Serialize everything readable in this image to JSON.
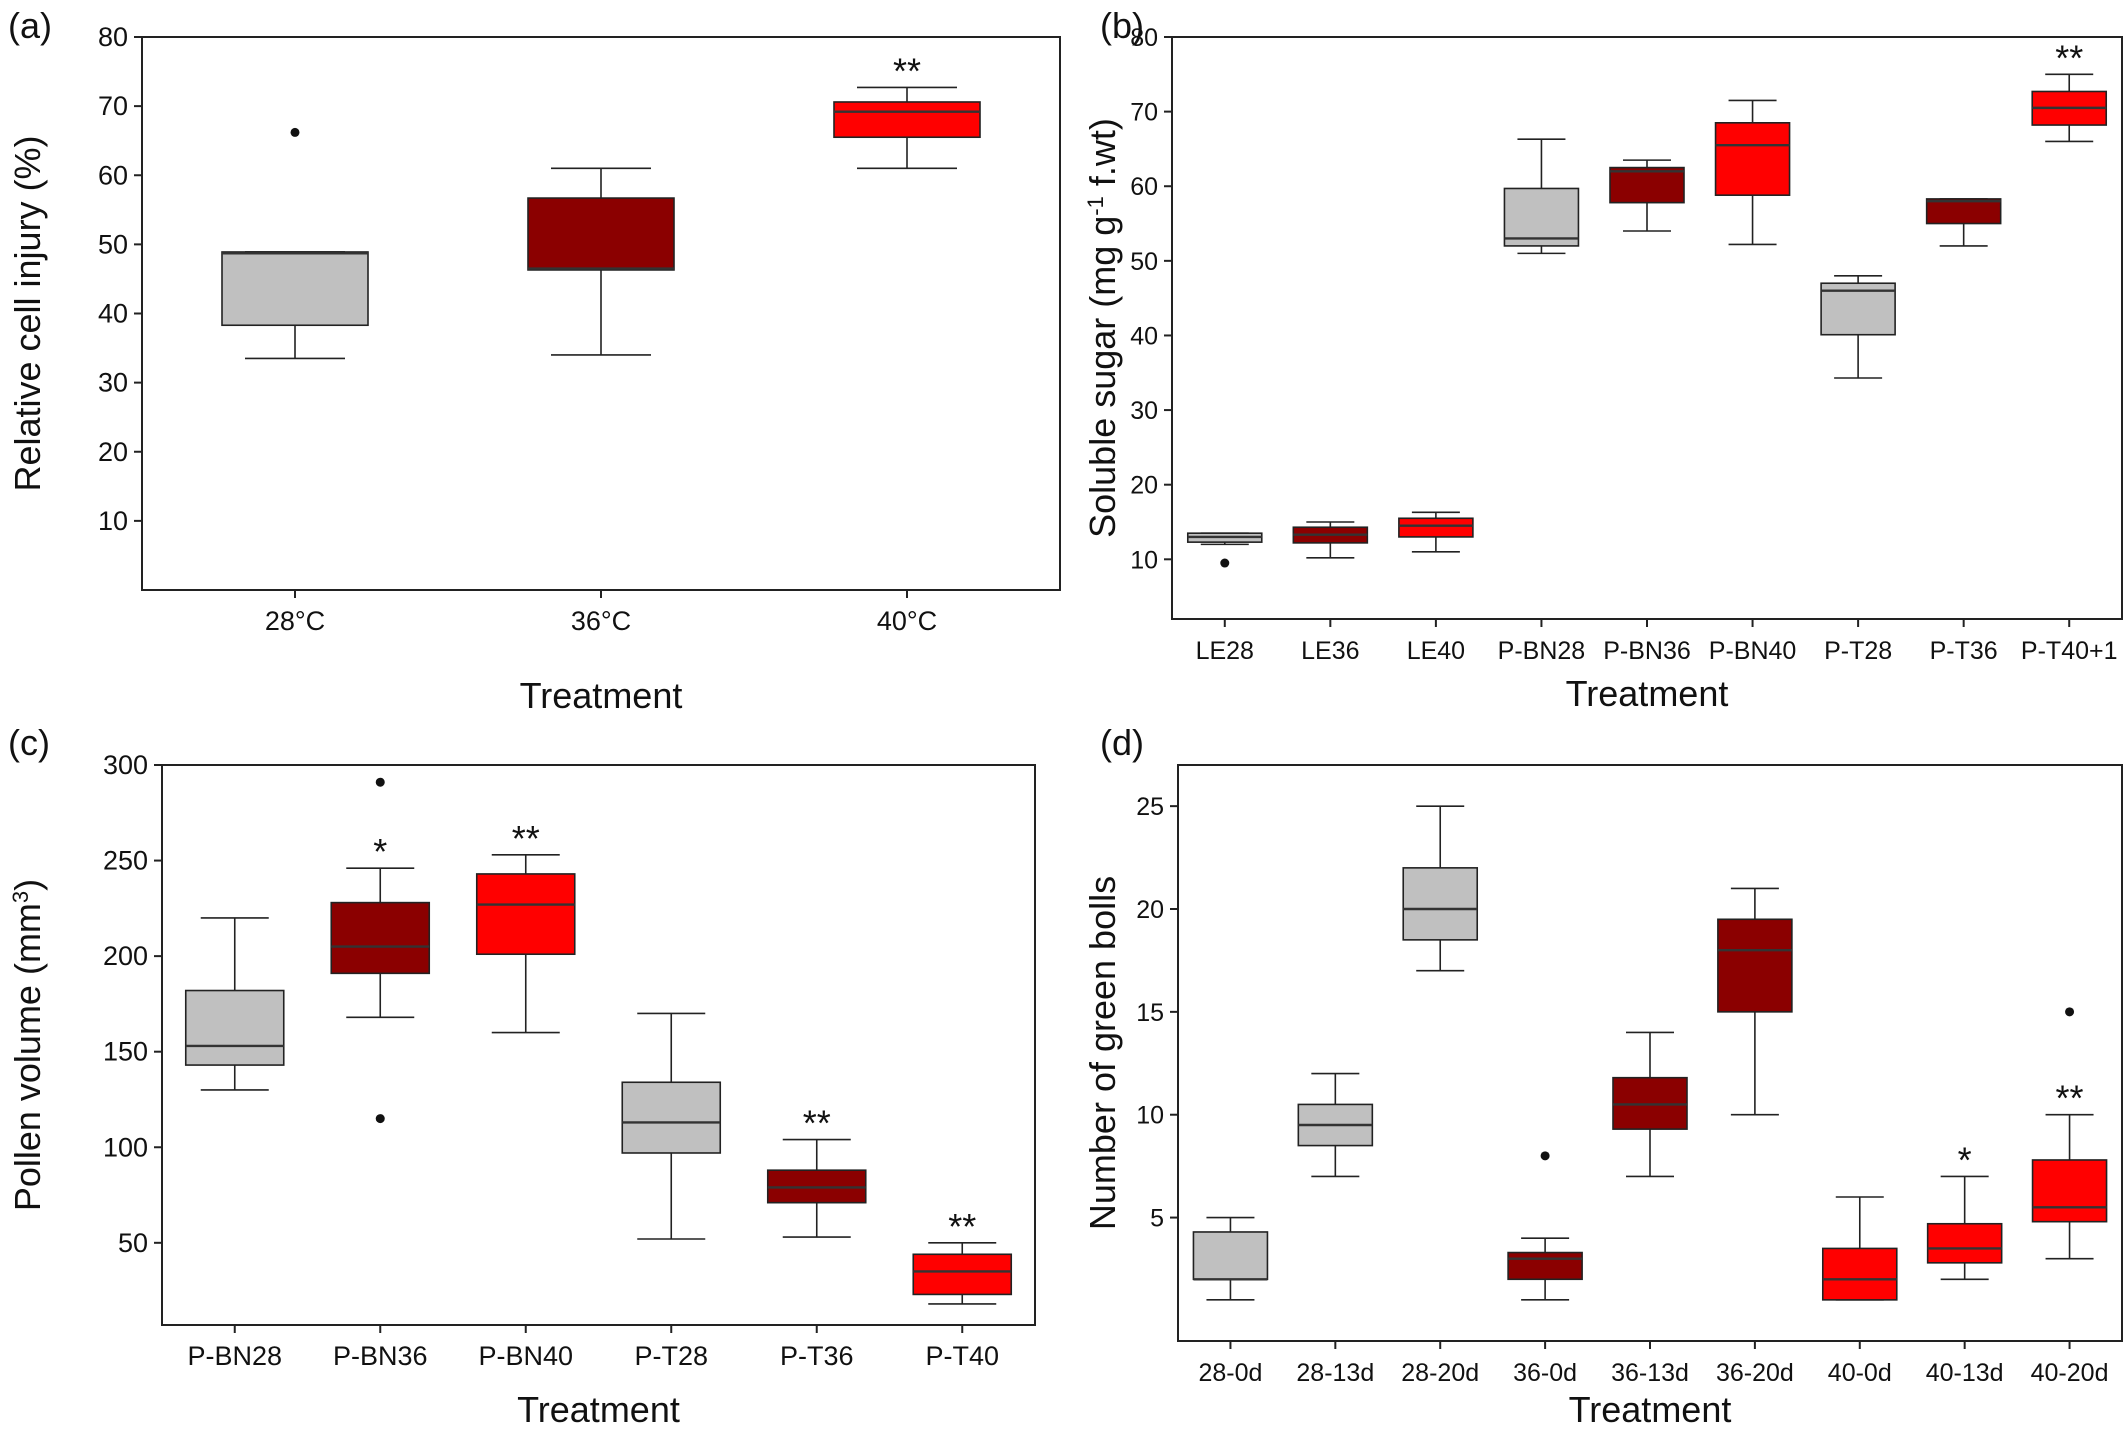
{
  "chart_data": [
    {
      "panel": "(a)",
      "type": "box",
      "xlabel": "Treatment",
      "ylabel": "Relative cell injury (%)",
      "ylim": [
        0,
        80
      ],
      "yticks": [
        10,
        20,
        30,
        40,
        50,
        60,
        70,
        80
      ],
      "categories": [
        "28°C",
        "36°C",
        "40°C"
      ],
      "boxes": [
        {
          "min": 33.5,
          "q1": 38.3,
          "median": 48.7,
          "q3": 48.9,
          "max": 48.9,
          "outliers": [
            66.2
          ],
          "color": "#c0c0c0",
          "sig": ""
        },
        {
          "min": 34.0,
          "q1": 46.3,
          "median": 46.5,
          "q3": 56.7,
          "max": 61.0,
          "outliers": [],
          "color": "#8b0000",
          "sig": ""
        },
        {
          "min": 61.0,
          "q1": 65.5,
          "median": 69.2,
          "q3": 70.6,
          "max": 72.7,
          "outliers": [],
          "color": "#ff0000",
          "sig": "**"
        }
      ]
    },
    {
      "panel": "(b)",
      "type": "box",
      "xlabel": "Treatment",
      "ylabel": "Soluble sugar (mg g",
      "ylabel_sup": "-1",
      "ylabel_suffix": " f.wt)",
      "ylim": [
        2,
        80
      ],
      "yticks": [
        10,
        20,
        30,
        40,
        50,
        60,
        70,
        80
      ],
      "categories": [
        "LE28",
        "LE36",
        "LE40",
        "P-BN28",
        "P-BN36",
        "P-BN40",
        "P-T28",
        "P-T36",
        "P-T40+1"
      ],
      "boxes": [
        {
          "min": 12.0,
          "q1": 12.3,
          "median": 13.0,
          "q3": 13.5,
          "max": 13.5,
          "outliers": [
            9.5
          ],
          "color": "#c0c0c0",
          "sig": ""
        },
        {
          "min": 10.2,
          "q1": 12.2,
          "median": 13.3,
          "q3": 14.3,
          "max": 15.0,
          "outliers": [],
          "color": "#8b0000",
          "sig": ""
        },
        {
          "min": 11.0,
          "q1": 13.0,
          "median": 14.5,
          "q3": 15.5,
          "max": 16.3,
          "outliers": [],
          "color": "#ff0000",
          "sig": ""
        },
        {
          "min": 51.0,
          "q1": 52.0,
          "median": 53.0,
          "q3": 59.7,
          "max": 66.3,
          "outliers": [],
          "color": "#c0c0c0",
          "sig": ""
        },
        {
          "min": 54.0,
          "q1": 57.8,
          "median": 62.0,
          "q3": 62.5,
          "max": 63.5,
          "outliers": [],
          "color": "#8b0000",
          "sig": ""
        },
        {
          "min": 52.2,
          "q1": 58.8,
          "median": 65.5,
          "q3": 68.5,
          "max": 71.5,
          "outliers": [],
          "color": "#ff0000",
          "sig": ""
        },
        {
          "min": 34.3,
          "q1": 40.1,
          "median": 46.0,
          "q3": 47.0,
          "max": 48.0,
          "outliers": [],
          "color": "#c0c0c0",
          "sig": ""
        },
        {
          "min": 52.0,
          "q1": 55.0,
          "median": 58.0,
          "q3": 58.3,
          "max": 58.3,
          "outliers": [],
          "color": "#8b0000",
          "sig": ""
        },
        {
          "min": 66.0,
          "q1": 68.2,
          "median": 70.5,
          "q3": 72.7,
          "max": 75.0,
          "outliers": [],
          "color": "#ff0000",
          "sig": "**"
        }
      ]
    },
    {
      "panel": "(c)",
      "type": "box",
      "xlabel": "Treatment",
      "ylabel": "Pollen volume (mm",
      "ylabel_sup": "3",
      "ylabel_suffix": ")",
      "ylim": [
        7,
        300
      ],
      "yticks": [
        50,
        100,
        150,
        200,
        250,
        300
      ],
      "categories": [
        "P-BN28",
        "P-BN36",
        "P-BN40",
        "P-T28",
        "P-T36",
        "P-T40"
      ],
      "boxes": [
        {
          "min": 130,
          "q1": 143,
          "median": 153,
          "q3": 182,
          "max": 220,
          "outliers": [],
          "color": "#c0c0c0",
          "sig": ""
        },
        {
          "min": 168,
          "q1": 191,
          "median": 205,
          "q3": 228,
          "max": 246,
          "outliers": [
            291,
            115
          ],
          "color": "#8b0000",
          "sig": "*"
        },
        {
          "min": 160,
          "q1": 201,
          "median": 227,
          "q3": 243,
          "max": 253,
          "outliers": [],
          "color": "#ff0000",
          "sig": "**"
        },
        {
          "min": 52,
          "q1": 97,
          "median": 113,
          "q3": 134,
          "max": 170,
          "outliers": [],
          "color": "#c0c0c0",
          "sig": ""
        },
        {
          "min": 53,
          "q1": 71,
          "median": 79,
          "q3": 88,
          "max": 104,
          "outliers": [],
          "color": "#8b0000",
          "sig": "**"
        },
        {
          "min": 18,
          "q1": 23,
          "median": 35,
          "q3": 44,
          "max": 50,
          "outliers": [],
          "color": "#ff0000",
          "sig": "**"
        }
      ]
    },
    {
      "panel": "(d)",
      "type": "box",
      "xlabel": "Treatment",
      "ylabel": "Number of green bolls",
      "ylim": [
        -1,
        27
      ],
      "yticks": [
        5,
        10,
        15,
        20,
        25
      ],
      "categories": [
        "28-0d",
        "28-13d",
        "28-20d",
        "36-0d",
        "36-13d",
        "36-20d",
        "40-0d",
        "40-13d",
        "40-20d"
      ],
      "boxes": [
        {
          "min": 1.0,
          "q1": 2.0,
          "median": 2.0,
          "q3": 4.3,
          "max": 5.0,
          "outliers": [],
          "color": "#c0c0c0",
          "sig": ""
        },
        {
          "min": 7.0,
          "q1": 8.5,
          "median": 9.5,
          "q3": 10.5,
          "max": 12.0,
          "outliers": [],
          "color": "#c0c0c0",
          "sig": ""
        },
        {
          "min": 17.0,
          "q1": 18.5,
          "median": 20.0,
          "q3": 22.0,
          "max": 25.0,
          "outliers": [],
          "color": "#c0c0c0",
          "sig": ""
        },
        {
          "min": 1.0,
          "q1": 2.0,
          "median": 3.0,
          "q3": 3.3,
          "max": 4.0,
          "outliers": [
            8.0
          ],
          "color": "#8b0000",
          "sig": ""
        },
        {
          "min": 7.0,
          "q1": 9.3,
          "median": 10.5,
          "q3": 11.8,
          "max": 14.0,
          "outliers": [],
          "color": "#8b0000",
          "sig": ""
        },
        {
          "min": 10.0,
          "q1": 15.0,
          "median": 18.0,
          "q3": 19.5,
          "max": 21.0,
          "outliers": [],
          "color": "#8b0000",
          "sig": ""
        },
        {
          "min": 1.0,
          "q1": 1.0,
          "median": 2.0,
          "q3": 3.5,
          "max": 6.0,
          "outliers": [],
          "color": "#ff0000",
          "sig": ""
        },
        {
          "min": 2.0,
          "q1": 2.8,
          "median": 3.5,
          "q3": 4.7,
          "max": 7.0,
          "outliers": [],
          "color": "#ff0000",
          "sig": "*"
        },
        {
          "min": 3.0,
          "q1": 4.8,
          "median": 5.5,
          "q3": 7.8,
          "max": 10.0,
          "outliers": [
            15.0
          ],
          "color": "#ff0000",
          "sig": "**"
        }
      ]
    }
  ]
}
